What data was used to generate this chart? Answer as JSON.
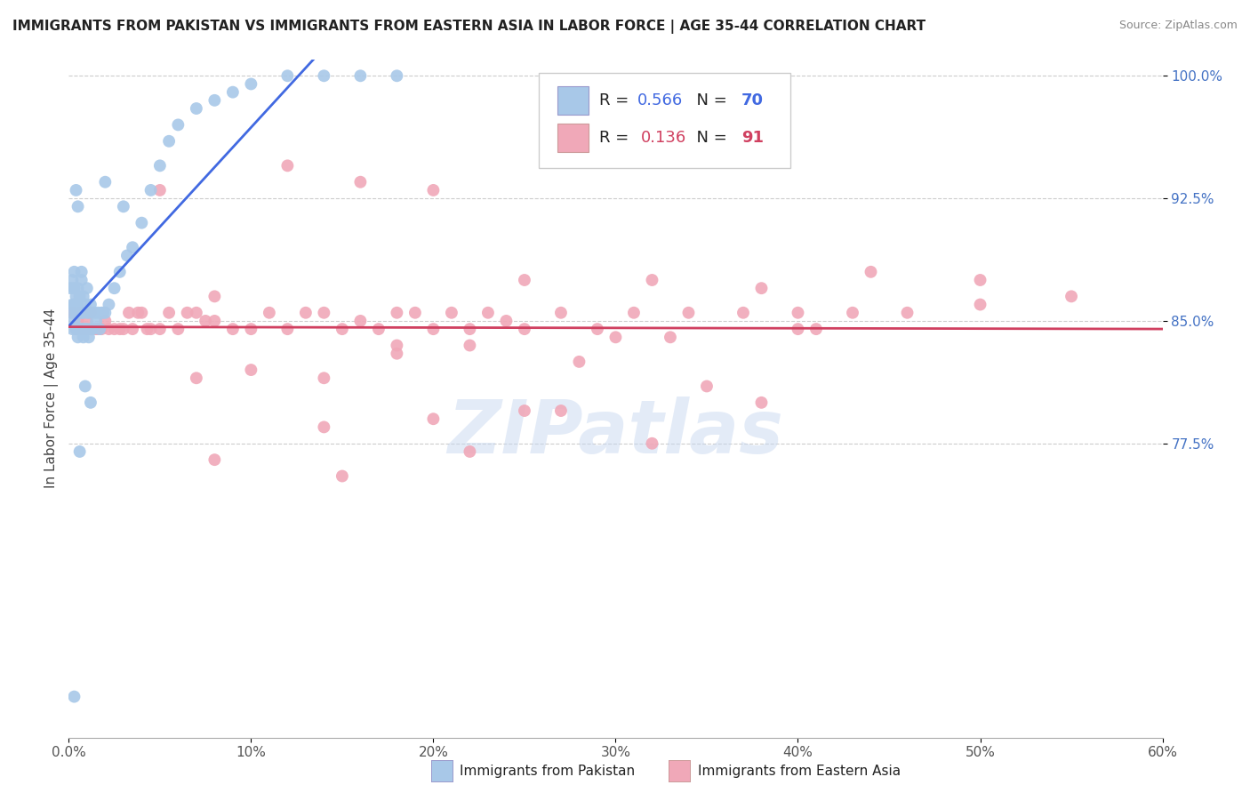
{
  "title": "IMMIGRANTS FROM PAKISTAN VS IMMIGRANTS FROM EASTERN ASIA IN LABOR FORCE | AGE 35-44 CORRELATION CHART",
  "source": "Source: ZipAtlas.com",
  "ylabel_label": "In Labor Force | Age 35-44",
  "legend_label_blue": "Immigrants from Pakistan",
  "legend_label_pink": "Immigrants from Eastern Asia",
  "blue_color": "#a8c8e8",
  "pink_color": "#f0a8b8",
  "trendline_blue": "#4169e1",
  "trendline_pink": "#d04060",
  "watermark": "ZIPatlas",
  "xlim": [
    0.0,
    0.6
  ],
  "ylim": [
    0.595,
    1.01
  ],
  "yticks": [
    0.775,
    0.85,
    0.925,
    1.0
  ],
  "xticks": [
    0.0,
    0.1,
    0.2,
    0.3,
    0.4,
    0.5,
    0.6
  ],
  "blue_R": "0.566",
  "blue_N": "70",
  "pink_R": "0.136",
  "pink_N": "91",
  "blue_scatter_x": [
    0.001,
    0.001,
    0.002,
    0.002,
    0.002,
    0.003,
    0.003,
    0.003,
    0.003,
    0.004,
    0.004,
    0.004,
    0.005,
    0.005,
    0.005,
    0.005,
    0.006,
    0.006,
    0.006,
    0.007,
    0.007,
    0.007,
    0.008,
    0.008,
    0.008,
    0.009,
    0.009,
    0.01,
    0.01,
    0.01,
    0.011,
    0.011,
    0.012,
    0.012,
    0.013,
    0.014,
    0.015,
    0.016,
    0.017,
    0.018,
    0.019,
    0.02,
    0.022,
    0.025,
    0.028,
    0.032,
    0.035,
    0.04,
    0.045,
    0.05,
    0.055,
    0.06,
    0.07,
    0.08,
    0.09,
    0.1,
    0.12,
    0.14,
    0.16,
    0.18,
    0.02,
    0.03,
    0.004,
    0.005,
    0.006,
    0.007,
    0.008,
    0.009,
    0.003,
    0.012
  ],
  "blue_scatter_y": [
    0.855,
    0.87,
    0.845,
    0.86,
    0.875,
    0.85,
    0.86,
    0.87,
    0.88,
    0.845,
    0.855,
    0.865,
    0.84,
    0.855,
    0.86,
    0.87,
    0.845,
    0.855,
    0.865,
    0.845,
    0.855,
    0.875,
    0.845,
    0.855,
    0.865,
    0.845,
    0.86,
    0.845,
    0.855,
    0.87,
    0.84,
    0.855,
    0.845,
    0.86,
    0.845,
    0.855,
    0.85,
    0.855,
    0.845,
    0.855,
    0.855,
    0.855,
    0.86,
    0.87,
    0.88,
    0.89,
    0.895,
    0.91,
    0.93,
    0.945,
    0.96,
    0.97,
    0.98,
    0.985,
    0.99,
    0.995,
    1.0,
    1.0,
    1.0,
    1.0,
    0.935,
    0.92,
    0.93,
    0.92,
    0.77,
    0.88,
    0.84,
    0.81,
    0.62,
    0.8
  ],
  "pink_scatter_x": [
    0.002,
    0.003,
    0.004,
    0.005,
    0.006,
    0.007,
    0.008,
    0.009,
    0.01,
    0.011,
    0.012,
    0.013,
    0.015,
    0.016,
    0.018,
    0.02,
    0.022,
    0.025,
    0.028,
    0.03,
    0.033,
    0.035,
    0.038,
    0.04,
    0.043,
    0.045,
    0.05,
    0.055,
    0.06,
    0.065,
    0.07,
    0.075,
    0.08,
    0.09,
    0.1,
    0.11,
    0.12,
    0.13,
    0.14,
    0.15,
    0.16,
    0.17,
    0.18,
    0.19,
    0.2,
    0.21,
    0.22,
    0.23,
    0.24,
    0.25,
    0.27,
    0.29,
    0.31,
    0.34,
    0.37,
    0.4,
    0.43,
    0.46,
    0.5,
    0.55,
    0.05,
    0.08,
    0.12,
    0.16,
    0.2,
    0.25,
    0.32,
    0.38,
    0.44,
    0.5,
    0.07,
    0.1,
    0.14,
    0.18,
    0.22,
    0.28,
    0.33,
    0.14,
    0.2,
    0.27,
    0.35,
    0.41,
    0.18,
    0.25,
    0.32,
    0.4,
    0.22,
    0.3,
    0.38,
    0.08,
    0.15
  ],
  "pink_scatter_y": [
    0.855,
    0.855,
    0.845,
    0.85,
    0.855,
    0.845,
    0.855,
    0.845,
    0.85,
    0.845,
    0.855,
    0.845,
    0.845,
    0.845,
    0.845,
    0.85,
    0.845,
    0.845,
    0.845,
    0.845,
    0.855,
    0.845,
    0.855,
    0.855,
    0.845,
    0.845,
    0.845,
    0.855,
    0.845,
    0.855,
    0.855,
    0.85,
    0.85,
    0.845,
    0.845,
    0.855,
    0.845,
    0.855,
    0.855,
    0.845,
    0.85,
    0.845,
    0.855,
    0.855,
    0.845,
    0.855,
    0.845,
    0.855,
    0.85,
    0.845,
    0.855,
    0.845,
    0.855,
    0.855,
    0.855,
    0.855,
    0.855,
    0.855,
    0.86,
    0.865,
    0.93,
    0.865,
    0.945,
    0.935,
    0.93,
    0.875,
    0.875,
    0.87,
    0.88,
    0.875,
    0.815,
    0.82,
    0.815,
    0.83,
    0.835,
    0.825,
    0.84,
    0.785,
    0.79,
    0.795,
    0.81,
    0.845,
    0.835,
    0.795,
    0.775,
    0.845,
    0.77,
    0.84,
    0.8,
    0.765,
    0.755
  ]
}
